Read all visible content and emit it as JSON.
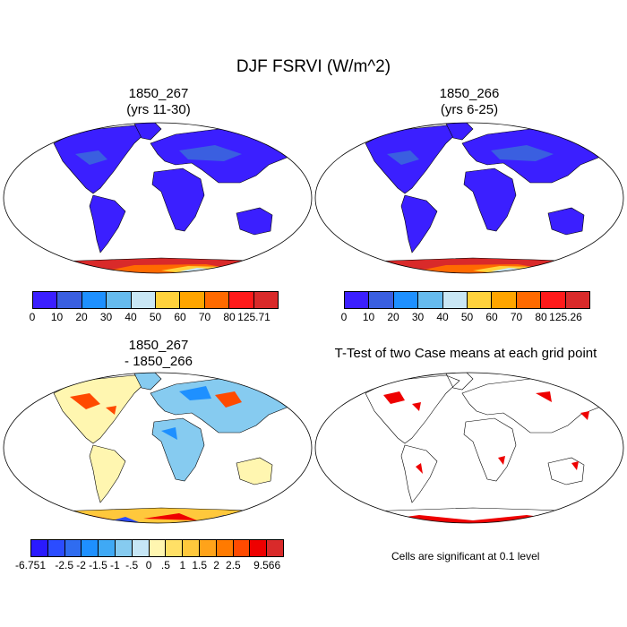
{
  "title": "DJF FSRVI (W/m^2)",
  "panels": {
    "case1": {
      "title": "1850_267\n(yrs 11-30)"
    },
    "case2": {
      "title": "1850_266\n(yrs 6-25)"
    },
    "diff": {
      "title": "1850_267\n- 1850_266"
    },
    "ttest": {
      "title": "T-Test of two Case means at each grid point",
      "note": "Cells are significant at 0.1 level"
    }
  },
  "colorbars": {
    "case1": {
      "colors": [
        "#3b1fff",
        "#3a5fe0",
        "#1e90ff",
        "#66bbee",
        "#c9e7f5",
        "#ffd23c",
        "#ffa500",
        "#ff6a00",
        "#ff1a1a",
        "#d92a2a"
      ],
      "labels": [
        "0",
        "10",
        "20",
        "30",
        "40",
        "50",
        "60",
        "70",
        "80",
        "125.71"
      ]
    },
    "case2": {
      "colors": [
        "#3b1fff",
        "#3a5fe0",
        "#1e90ff",
        "#66bbee",
        "#c9e7f5",
        "#ffd23c",
        "#ffa500",
        "#ff6a00",
        "#ff1a1a",
        "#d92a2a"
      ],
      "labels": [
        "0",
        "10",
        "20",
        "30",
        "40",
        "50",
        "60",
        "70",
        "80",
        "125.26"
      ]
    },
    "diff": {
      "colors": [
        "#2a1aff",
        "#2b4cff",
        "#2f6cf0",
        "#1e90ff",
        "#3fa9f5",
        "#86cbf0",
        "#c6e6f5",
        "#fff6b0",
        "#ffe066",
        "#ffc83c",
        "#ffa31a",
        "#ff7a00",
        "#ff4a00",
        "#ee0000",
        "#d92a2a"
      ],
      "labels": [
        "-6.751",
        "-2.5",
        "-2",
        "-1.5",
        "-1",
        "-.5",
        "0",
        ".5",
        "1",
        "1.5",
        "2",
        "2.5",
        "9.566"
      ],
      "label_positions": [
        0,
        2,
        3,
        4,
        5,
        6,
        7,
        8,
        9,
        10,
        11,
        12,
        14
      ]
    }
  },
  "map_colors": {
    "land_case": "#3b1fff",
    "land_case_mid": "#3a5fe0",
    "antarctica_outer": "#d92a2a",
    "antarctica_mid": "#ff6a00",
    "antarctica_inner": "#ffd23c",
    "antarctica_core": "#c9e7f5",
    "diff_land": "#fff6b0",
    "diff_blue": "#86cbf0",
    "diff_red": "#ff4a00",
    "significant": "#ee0000"
  }
}
